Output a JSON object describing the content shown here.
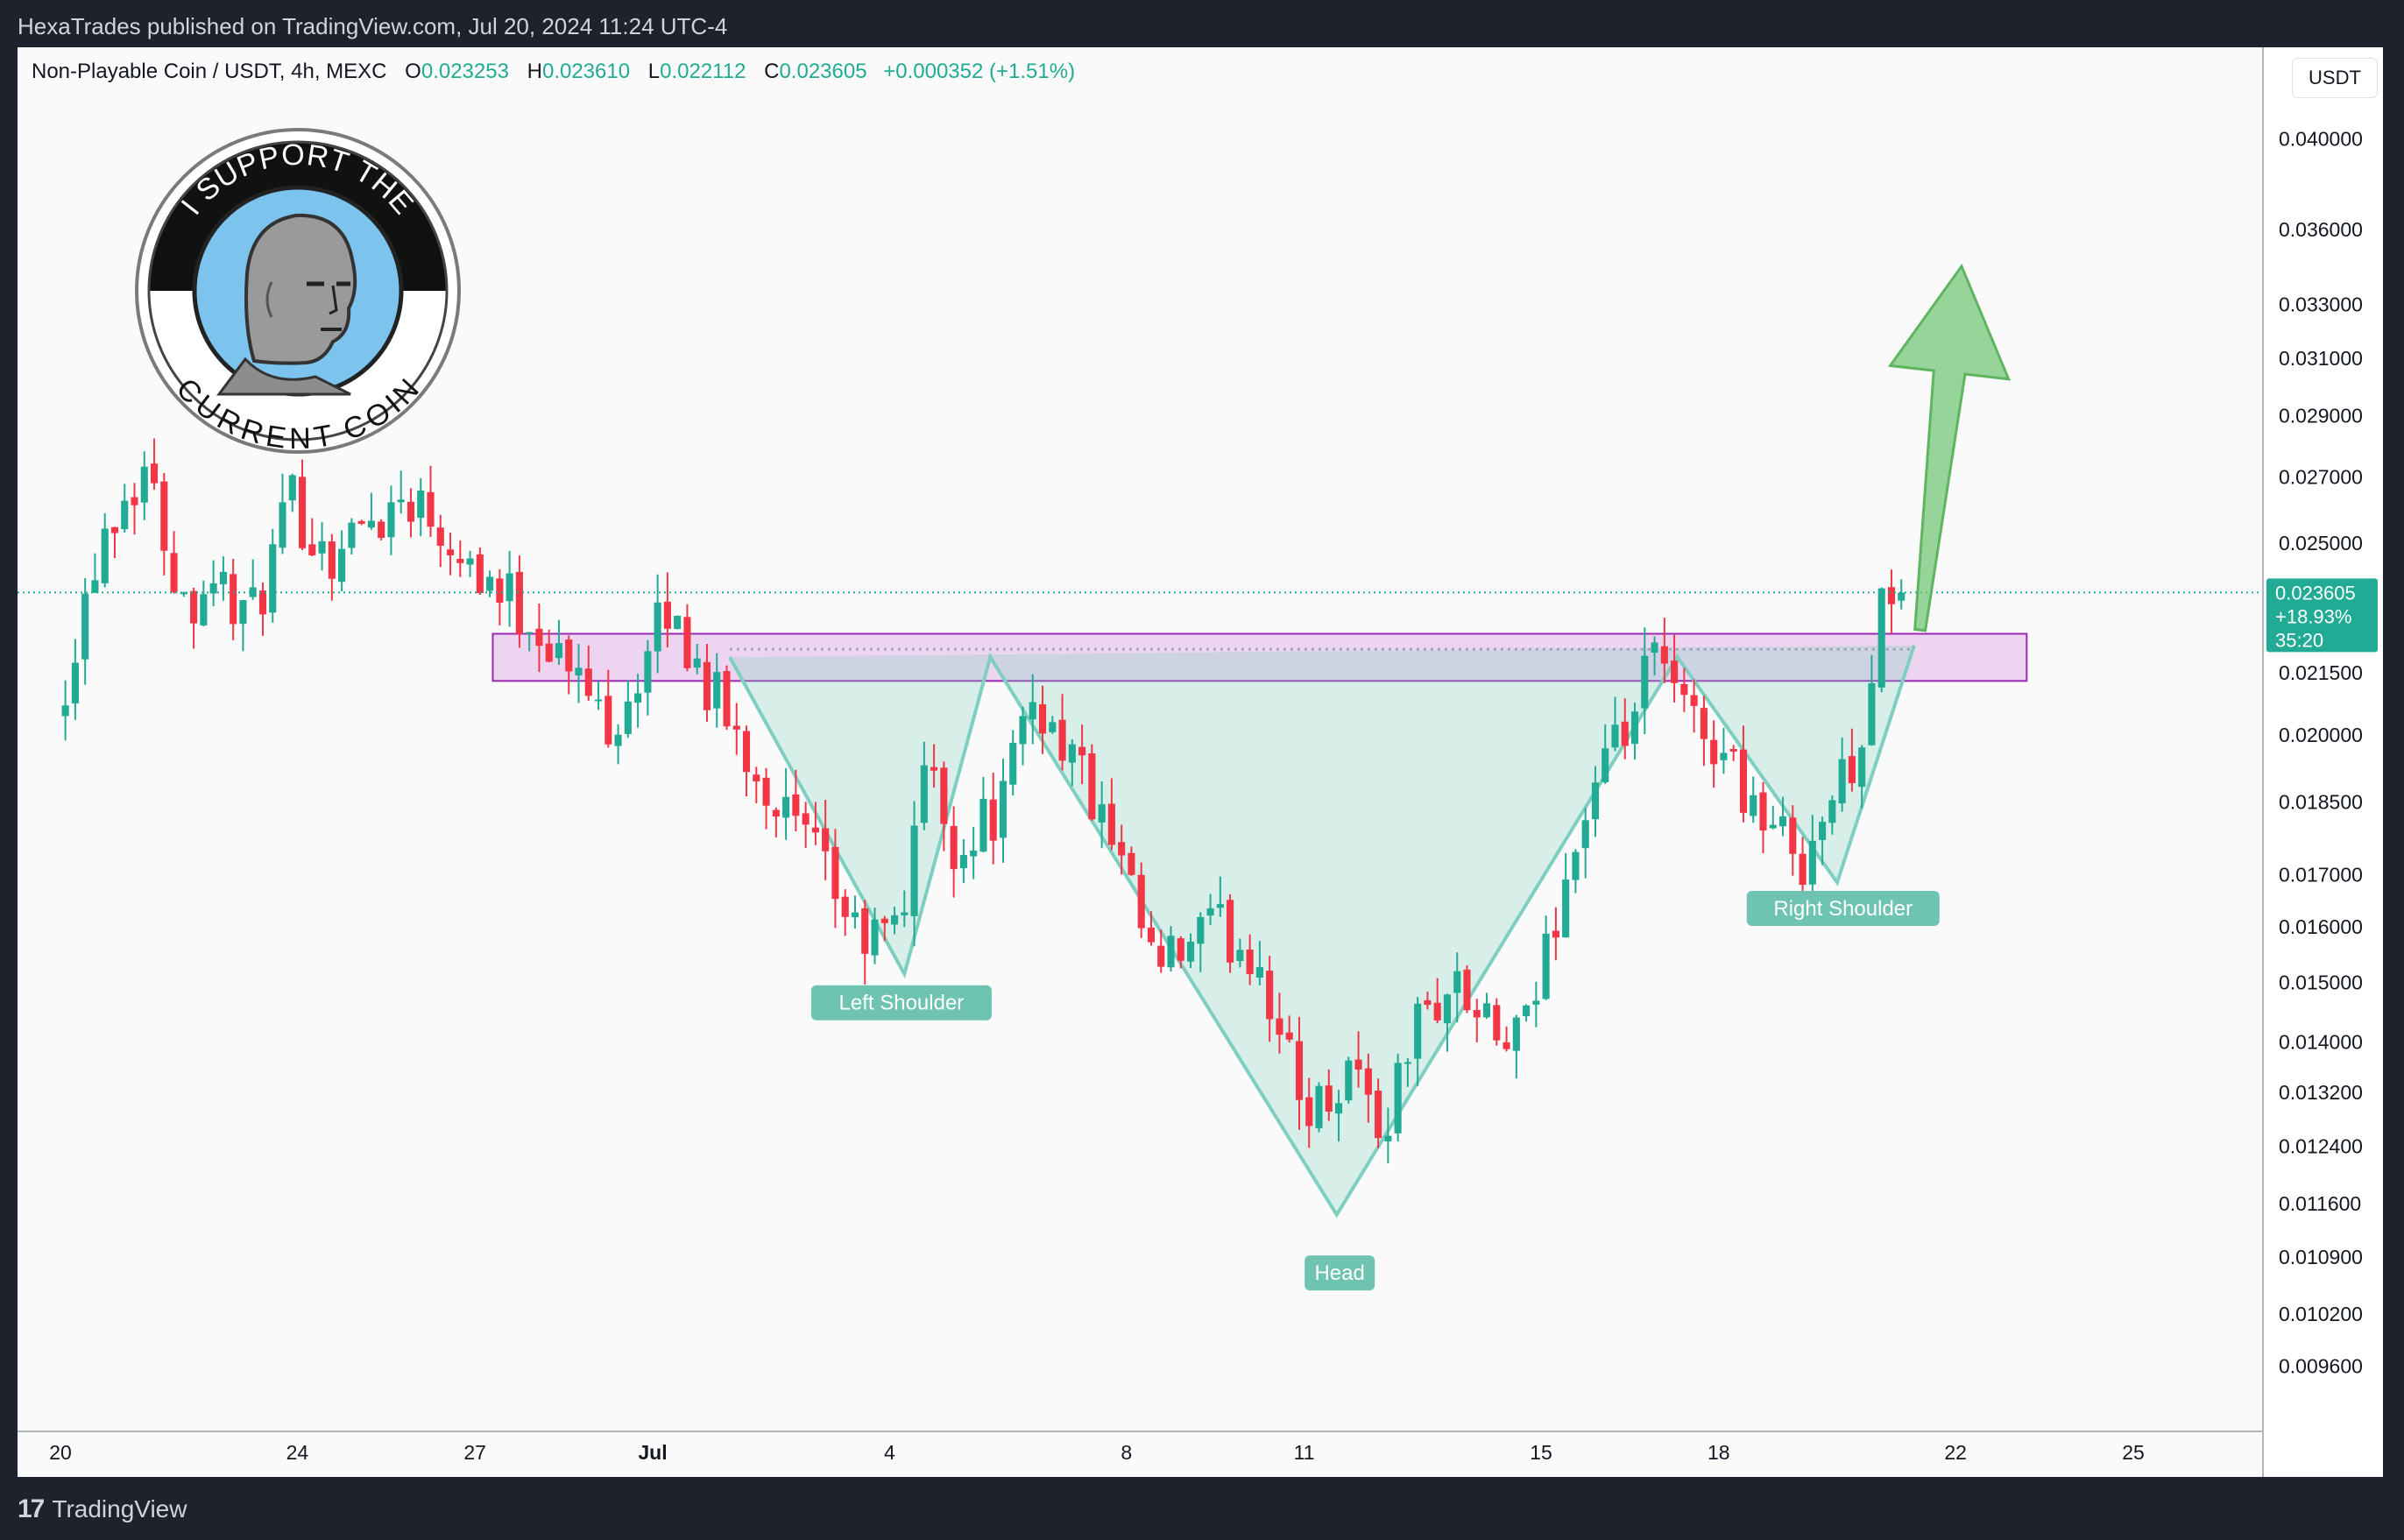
{
  "header": {
    "published": "HexaTrades published on TradingView.com, Jul 20, 2024 11:24 UTC-4"
  },
  "legend": {
    "symbol": "Non-Playable Coin / USDT, 4h, MEXC",
    "o_label": "O",
    "o": "0.023253",
    "h_label": "H",
    "h": "0.023610",
    "l_label": "L",
    "l": "0.022112",
    "c_label": "C",
    "c": "0.023605",
    "change": "+0.000352 (+1.51%)"
  },
  "currency_button": "USDT",
  "price_tag": {
    "price": "0.023605",
    "pct": "+18.93%",
    "countdown": "35:20"
  },
  "badge": {
    "top_text": "I SUPPORT THE",
    "bottom_text": "CURRENT COIN"
  },
  "brand": "TradingView",
  "colors": {
    "up": "#22ab94",
    "down": "#f23645",
    "pattern": "#7ecfc0",
    "zone": "#d58fe0",
    "arrow": "#76c779"
  },
  "chart_data": {
    "type": "candlestick",
    "symbol": "Non-Playable Coin / USDT",
    "timeframe": "4h",
    "exchange": "MEXC",
    "y_scale": "log",
    "ylim": [
      0.0089,
      0.0445
    ],
    "y_ticks": [
      "0.040000",
      "0.036000",
      "0.033000",
      "0.031000",
      "0.029000",
      "0.027000",
      "0.025000",
      "0.021500",
      "0.020000",
      "0.018500",
      "0.017000",
      "0.016000",
      "0.015000",
      "0.014000",
      "0.013200",
      "0.012400",
      "0.011600",
      "0.010900",
      "0.010200",
      "0.009600"
    ],
    "x_ticks": [
      {
        "label": "20",
        "day": 20
      },
      {
        "label": "24",
        "day": 24
      },
      {
        "label": "27",
        "day": 27
      },
      {
        "label": "Jul",
        "day": 30
      },
      {
        "label": "4",
        "day": 34
      },
      {
        "label": "8",
        "day": 38
      },
      {
        "label": "11",
        "day": 41
      },
      {
        "label": "15",
        "day": 45
      },
      {
        "label": "18",
        "day": 48
      },
      {
        "label": "22",
        "day": 52
      },
      {
        "label": "25",
        "day": 55
      }
    ],
    "last_price": 0.023605,
    "price_waypoints": [
      [
        20,
        0.0205
      ],
      [
        20.8,
        0.0255
      ],
      [
        21.5,
        0.0274
      ],
      [
        22.2,
        0.0232
      ],
      [
        22.6,
        0.0242
      ],
      [
        23.3,
        0.0228
      ],
      [
        24,
        0.0262
      ],
      [
        24.6,
        0.0246
      ],
      [
        25.3,
        0.0257
      ],
      [
        26,
        0.0265
      ],
      [
        26.7,
        0.0252
      ],
      [
        27.4,
        0.0238
      ],
      [
        28.1,
        0.0228
      ],
      [
        28.8,
        0.0213
      ],
      [
        29.4,
        0.0203
      ],
      [
        30,
        0.0218
      ],
      [
        30.3,
        0.0232
      ],
      [
        30.8,
        0.0218
      ],
      [
        31.6,
        0.0197
      ],
      [
        32.3,
        0.0183
      ],
      [
        33,
        0.017
      ],
      [
        33.6,
        0.0157
      ],
      [
        34.3,
        0.016
      ],
      [
        34.6,
        0.0196
      ],
      [
        35.2,
        0.0175
      ],
      [
        36,
        0.0185
      ],
      [
        36.5,
        0.0209
      ],
      [
        37.2,
        0.0195
      ],
      [
        38,
        0.017
      ],
      [
        38.6,
        0.0151
      ],
      [
        39.5,
        0.016
      ],
      [
        40.3,
        0.0155
      ],
      [
        41,
        0.0131
      ],
      [
        41.4,
        0.013
      ],
      [
        41.9,
        0.0138
      ],
      [
        42.4,
        0.0125
      ],
      [
        42.9,
        0.0142
      ],
      [
        43.6,
        0.015
      ],
      [
        44.3,
        0.014
      ],
      [
        44.8,
        0.014
      ],
      [
        45.3,
        0.0162
      ],
      [
        45.9,
        0.0185
      ],
      [
        46.5,
        0.02
      ],
      [
        47,
        0.0219
      ],
      [
        47.5,
        0.0205
      ],
      [
        48.2,
        0.0196
      ],
      [
        48.9,
        0.018
      ],
      [
        49.5,
        0.0174
      ],
      [
        50.2,
        0.019
      ],
      [
        50.5,
        0.0202
      ],
      [
        50.9,
        0.0236
      ]
    ],
    "annotations": [
      {
        "type": "label",
        "text": "Left Shoulder",
        "day": 34.2,
        "price": 0.01465
      },
      {
        "type": "label",
        "text": "Head",
        "day": 41.6,
        "price": 0.0107
      },
      {
        "type": "label",
        "text": "Right Shoulder",
        "day": 50.1,
        "price": 0.01635
      },
      {
        "type": "zone",
        "from_day": 27.3,
        "to_day": 53.2,
        "low": 0.0213,
        "high": 0.0225
      },
      {
        "type": "hline",
        "price": 0.023605
      }
    ],
    "pattern": {
      "name": "Inverse Head and Shoulders",
      "points": [
        [
          31.3,
          0.0219
        ],
        [
          34.25,
          0.01515
        ],
        [
          35.7,
          0.0219
        ],
        [
          41.55,
          0.01145
        ],
        [
          47.3,
          0.0219
        ],
        [
          50.0,
          0.01685
        ],
        [
          51.3,
          0.0222
        ]
      ],
      "neckline_price": 0.0221
    },
    "projection_arrow": {
      "from_day": 51.4,
      "from_price": 0.0226,
      "to_day": 52.1,
      "to_price": 0.0345
    }
  }
}
